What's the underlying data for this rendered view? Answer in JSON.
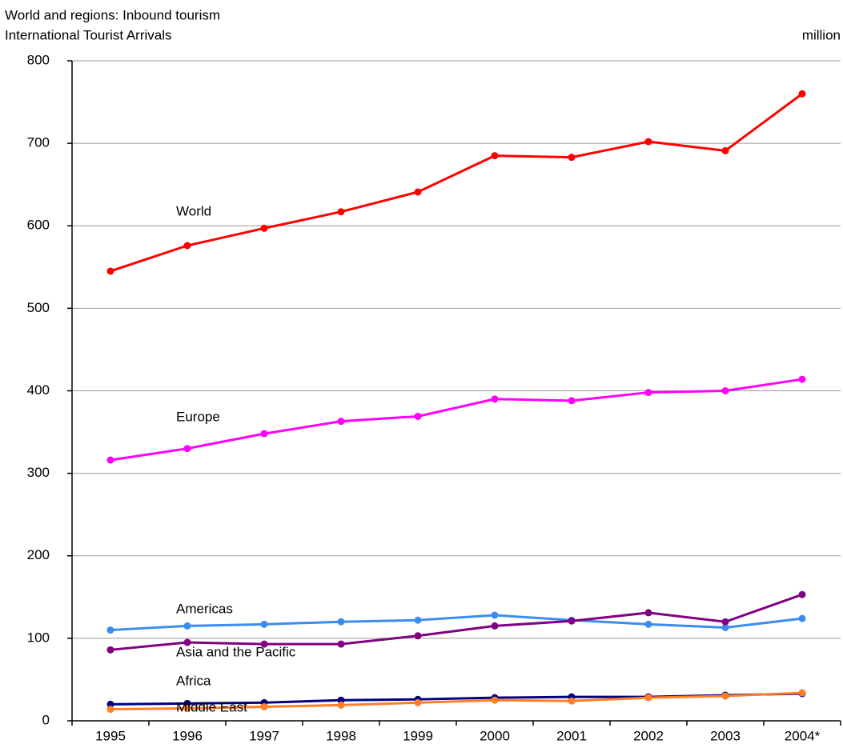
{
  "chart_data": {
    "type": "line",
    "title": "World and regions: Inbound tourism",
    "subtitle": "International Tourist Arrivals",
    "unit_label": "million",
    "categories": [
      "1995",
      "1996",
      "1997",
      "1998",
      "1999",
      "2000",
      "2001",
      "2002",
      "2003",
      "2004*"
    ],
    "series": [
      {
        "name": "World",
        "color": "#ff0000",
        "values": [
          545,
          576,
          597,
          617,
          641,
          685,
          683,
          702,
          691,
          760
        ]
      },
      {
        "name": "Europe",
        "color": "#ff00ff",
        "values": [
          316,
          330,
          348,
          363,
          369,
          390,
          388,
          398,
          400,
          414
        ]
      },
      {
        "name": "Americas",
        "color": "#3c8cf0",
        "values": [
          110,
          115,
          117,
          120,
          122,
          128,
          122,
          117,
          113,
          124
        ]
      },
      {
        "name": "Asia and the Pacific",
        "color": "#800080",
        "values": [
          86,
          95,
          93,
          93,
          103,
          115,
          121,
          131,
          120,
          153
        ]
      },
      {
        "name": "Africa",
        "color": "#000080",
        "values": [
          20,
          21,
          22,
          25,
          26,
          28,
          29,
          29,
          31,
          33
        ]
      },
      {
        "name": "Middle East",
        "color": "#ff7f27",
        "values": [
          14,
          15,
          17,
          19,
          22,
          25,
          24,
          28,
          30,
          34
        ]
      }
    ],
    "ylim": [
      0,
      800
    ],
    "yticks": [
      0,
      100,
      200,
      300,
      400,
      500,
      600,
      700,
      800
    ],
    "grid": true
  }
}
